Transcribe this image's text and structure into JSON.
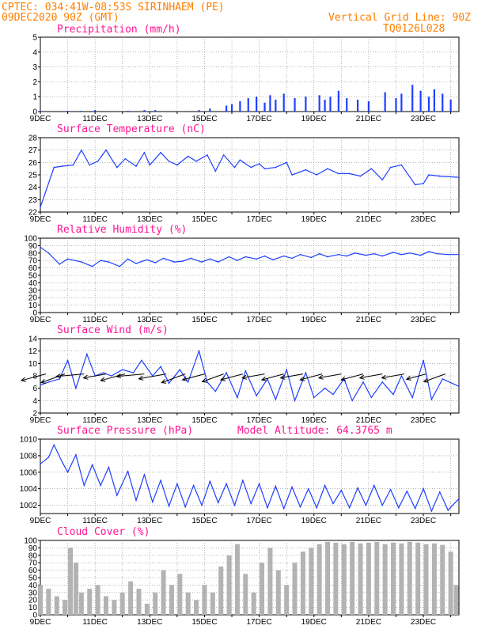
{
  "header": {
    "line1": "CPTEC:  034:41W-08:53S  SIRINHAEM (PE)",
    "line2": "09DEC2020 90Z (GMT)",
    "grid_note": "Vertical Grid Line: 90Z",
    "code": "TQ0126L028"
  },
  "colors": {
    "header": "#ff7f00",
    "title": "#ff1493",
    "line": "#1f3fff",
    "cloud": "#b3b3b3",
    "arrow": "#000000"
  },
  "x_tick_labels": [
    "9DEC",
    "11DEC",
    "13DEC",
    "15DEC",
    "17DEC",
    "19DEC",
    "21DEC",
    "23DEC"
  ],
  "chart_data": [
    {
      "type": "bar",
      "title": "Precipitation (mm/h)",
      "ylim": [
        0,
        5
      ],
      "yticks": [
        0,
        1,
        2,
        3,
        4,
        5
      ],
      "x_days": [
        0,
        15.3
      ],
      "x": [
        0.0,
        1.0,
        1.5,
        2.0,
        3.2,
        3.8,
        4.2,
        5.8,
        6.2,
        6.8,
        7.0,
        7.3,
        7.6,
        7.9,
        8.2,
        8.4,
        8.6,
        8.9,
        9.3,
        9.7,
        10.2,
        10.4,
        10.6,
        10.9,
        11.2,
        11.6,
        12.0,
        12.6,
        13.0,
        13.2,
        13.6,
        13.9,
        14.2,
        14.4,
        14.7,
        15.0
      ],
      "values": [
        0.05,
        0.05,
        0.05,
        0.1,
        0.05,
        0.1,
        0.1,
        0.1,
        0.2,
        0.4,
        0.5,
        0.7,
        0.9,
        1.0,
        0.6,
        1.1,
        0.8,
        1.2,
        0.9,
        1.0,
        1.1,
        0.8,
        1.0,
        1.4,
        0.9,
        0.8,
        0.7,
        1.3,
        0.9,
        1.2,
        1.8,
        1.4,
        1.0,
        1.5,
        1.2,
        0.8
      ]
    },
    {
      "type": "line",
      "title": "Surface Temperature (nC)",
      "ylim": [
        22,
        28
      ],
      "yticks": [
        22,
        23,
        24,
        25,
        26,
        27,
        28
      ],
      "x_days": [
        0,
        15.3
      ],
      "x": [
        0.0,
        0.5,
        0.8,
        1.2,
        1.5,
        1.8,
        2.1,
        2.4,
        2.8,
        3.1,
        3.5,
        3.8,
        4.0,
        4.4,
        4.7,
        5.0,
        5.4,
        5.7,
        6.1,
        6.4,
        6.7,
        7.1,
        7.3,
        7.7,
        8.0,
        8.2,
        8.6,
        9.0,
        9.2,
        9.7,
        10.1,
        10.5,
        10.9,
        11.3,
        11.7,
        12.1,
        12.5,
        12.8,
        13.2,
        13.7,
        14.0,
        14.2,
        14.6,
        15.3
      ],
      "values": [
        22.4,
        25.6,
        25.7,
        25.8,
        27.0,
        25.8,
        26.1,
        27.0,
        25.6,
        26.3,
        25.7,
        26.8,
        25.8,
        26.8,
        26.1,
        25.8,
        26.5,
        26.1,
        26.6,
        25.3,
        26.6,
        25.6,
        26.2,
        25.6,
        25.9,
        25.5,
        25.6,
        26.0,
        25.0,
        25.4,
        25.0,
        25.5,
        25.1,
        25.1,
        24.9,
        25.5,
        24.6,
        25.6,
        25.8,
        24.2,
        24.3,
        25.0,
        24.9,
        24.8
      ]
    },
    {
      "type": "line",
      "title": "Relative Humidity (%)",
      "ylim": [
        0,
        100
      ],
      "yticks": [
        0,
        10,
        20,
        30,
        40,
        50,
        60,
        70,
        80,
        90,
        100
      ],
      "x_days": [
        0,
        15.3
      ],
      "x": [
        0.0,
        0.3,
        0.7,
        1.0,
        1.5,
        1.9,
        2.2,
        2.5,
        2.9,
        3.2,
        3.5,
        3.9,
        4.2,
        4.5,
        4.9,
        5.2,
        5.5,
        5.9,
        6.2,
        6.5,
        6.9,
        7.2,
        7.5,
        7.9,
        8.2,
        8.5,
        8.9,
        9.2,
        9.5,
        9.9,
        10.2,
        10.5,
        10.9,
        11.2,
        11.5,
        11.9,
        12.2,
        12.5,
        12.9,
        13.2,
        13.5,
        13.9,
        14.2,
        14.5,
        14.9,
        15.3
      ],
      "values": [
        88,
        80,
        65,
        72,
        68,
        62,
        70,
        68,
        62,
        72,
        66,
        71,
        67,
        73,
        68,
        69,
        73,
        68,
        72,
        68,
        75,
        70,
        75,
        72,
        76,
        71,
        76,
        73,
        78,
        74,
        79,
        75,
        78,
        76,
        80,
        77,
        79,
        76,
        81,
        78,
        80,
        77,
        82,
        79,
        78,
        78
      ]
    },
    {
      "type": "line",
      "title": "Surface Wind (m/s)",
      "ylim": [
        2,
        14
      ],
      "yticks": [
        2,
        4,
        6,
        8,
        10,
        12,
        14
      ],
      "x_days": [
        0,
        15.3
      ],
      "x": [
        0.0,
        0.3,
        0.7,
        1.0,
        1.3,
        1.7,
        2.0,
        2.3,
        2.6,
        3.0,
        3.4,
        3.7,
        4.1,
        4.4,
        4.7,
        5.1,
        5.4,
        5.8,
        6.1,
        6.4,
        6.8,
        7.2,
        7.5,
        7.9,
        8.3,
        8.6,
        9.0,
        9.3,
        9.7,
        10.0,
        10.4,
        10.7,
        11.1,
        11.4,
        11.8,
        12.1,
        12.5,
        12.9,
        13.2,
        13.6,
        14.0,
        14.3,
        14.7,
        15.3
      ],
      "values": [
        6.5,
        7.0,
        7.5,
        10.5,
        6.0,
        11.5,
        8.0,
        8.5,
        8.0,
        9.0,
        8.5,
        10.5,
        8.0,
        9.5,
        6.8,
        9.0,
        7.0,
        12.0,
        7.0,
        5.5,
        8.5,
        4.5,
        8.8,
        4.8,
        7.5,
        4.2,
        9.0,
        4.0,
        8.5,
        4.5,
        6.0,
        5.0,
        7.5,
        4.0,
        7.0,
        4.5,
        7.0,
        5.0,
        8.0,
        4.5,
        10.5,
        4.2,
        7.5,
        6.3
      ]
    },
    {
      "type": "line",
      "title": "Surface Pressure (hPa)",
      "annotation": "Model Altitude: 64.3765 m",
      "ylim": [
        1001,
        1010
      ],
      "yticks": [
        1002,
        1004,
        1006,
        1008,
        1010
      ],
      "x_days": [
        0,
        15.3
      ],
      "x": [
        0.0,
        0.3,
        0.5,
        0.8,
        1.0,
        1.3,
        1.6,
        1.9,
        2.2,
        2.5,
        2.8,
        3.2,
        3.5,
        3.8,
        4.1,
        4.4,
        4.7,
        5.0,
        5.3,
        5.6,
        5.9,
        6.2,
        6.5,
        6.8,
        7.1,
        7.4,
        7.7,
        8.0,
        8.3,
        8.6,
        8.9,
        9.2,
        9.5,
        9.8,
        10.1,
        10.4,
        10.7,
        11.0,
        11.3,
        11.6,
        11.9,
        12.2,
        12.5,
        12.8,
        13.1,
        13.4,
        13.7,
        14.0,
        14.3,
        14.6,
        14.9,
        15.3
      ],
      "values": [
        1007.0,
        1007.8,
        1009.3,
        1007.2,
        1006.0,
        1008.1,
        1004.4,
        1006.9,
        1004.4,
        1006.6,
        1003.2,
        1006.1,
        1002.6,
        1005.7,
        1002.4,
        1005.0,
        1001.9,
        1004.6,
        1001.8,
        1004.4,
        1002.0,
        1004.9,
        1002.3,
        1004.6,
        1002.0,
        1005.0,
        1002.2,
        1004.6,
        1001.7,
        1004.3,
        1001.6,
        1004.2,
        1001.8,
        1004.0,
        1001.7,
        1004.4,
        1002.2,
        1003.8,
        1001.7,
        1004.1,
        1002.0,
        1004.4,
        1002.0,
        1003.9,
        1001.7,
        1003.7,
        1001.6,
        1004.0,
        1001.3,
        1003.6,
        1001.4,
        1002.8
      ]
    },
    {
      "type": "bar",
      "title": "Cloud Cover (%)",
      "ylim": [
        0,
        100
      ],
      "yticks": [
        0,
        10,
        20,
        30,
        40,
        50,
        60,
        70,
        80,
        90,
        100
      ],
      "x_days": [
        0,
        15.3
      ],
      "x": [
        0.0,
        0.3,
        0.6,
        0.9,
        1.1,
        1.3,
        1.5,
        1.8,
        2.1,
        2.4,
        2.7,
        3.0,
        3.3,
        3.6,
        3.9,
        4.2,
        4.5,
        4.8,
        5.1,
        5.4,
        5.7,
        6.0,
        6.3,
        6.6,
        6.9,
        7.2,
        7.5,
        7.8,
        8.1,
        8.4,
        8.7,
        9.0,
        9.3,
        9.6,
        9.9,
        10.2,
        10.5,
        10.8,
        11.1,
        11.4,
        11.7,
        12.0,
        12.3,
        12.6,
        12.9,
        13.2,
        13.5,
        13.8,
        14.1,
        14.4,
        14.7,
        15.0,
        15.2
      ],
      "values": [
        40,
        35,
        25,
        20,
        90,
        70,
        30,
        35,
        40,
        25,
        20,
        30,
        45,
        35,
        15,
        30,
        60,
        40,
        55,
        30,
        20,
        40,
        30,
        65,
        80,
        95,
        55,
        30,
        70,
        90,
        60,
        40,
        70,
        85,
        90,
        95,
        98,
        97,
        95,
        98,
        96,
        97,
        98,
        95,
        97,
        96,
        98,
        97,
        95,
        96,
        94,
        85,
        40
      ]
    }
  ],
  "wind_vectors": [
    {
      "day": 0.2,
      "dir": 195,
      "len": 10
    },
    {
      "day": 0.9,
      "dir": 200,
      "len": 10
    },
    {
      "day": 1.6,
      "dir": 185,
      "len": 11
    },
    {
      "day": 2.4,
      "dir": 190,
      "len": 9
    },
    {
      "day": 3.1,
      "dir": 195,
      "len": 10
    },
    {
      "day": 3.8,
      "dir": 185,
      "len": 11
    },
    {
      "day": 4.6,
      "dir": 190,
      "len": 11
    },
    {
      "day": 5.3,
      "dir": 200,
      "len": 10
    },
    {
      "day": 6.0,
      "dir": 195,
      "len": 9
    },
    {
      "day": 6.7,
      "dir": 200,
      "len": 9
    },
    {
      "day": 7.4,
      "dir": 195,
      "len": 9
    },
    {
      "day": 8.2,
      "dir": 190,
      "len": 9
    },
    {
      "day": 8.9,
      "dir": 195,
      "len": 9
    },
    {
      "day": 9.6,
      "dir": 190,
      "len": 9
    },
    {
      "day": 10.3,
      "dir": 195,
      "len": 9
    },
    {
      "day": 11.0,
      "dir": 190,
      "len": 9
    },
    {
      "day": 11.8,
      "dir": 195,
      "len": 9
    },
    {
      "day": 12.5,
      "dir": 190,
      "len": 9
    },
    {
      "day": 13.3,
      "dir": 190,
      "len": 9
    },
    {
      "day": 14.1,
      "dir": 195,
      "len": 8
    },
    {
      "day": 14.8,
      "dir": 200,
      "len": 9
    }
  ]
}
